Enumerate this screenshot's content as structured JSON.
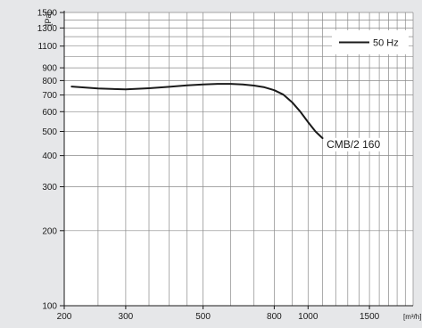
{
  "chart_data": {
    "type": "line",
    "title": "",
    "xlabel": "[m³/h]",
    "ylabel": "[Pa]",
    "x_scale": "log",
    "y_scale": "log",
    "xlim": [
      200,
      2000
    ],
    "ylim": [
      100,
      1500
    ],
    "x_ticks": [
      200,
      300,
      500,
      800,
      1000,
      1500
    ],
    "y_ticks": [
      100,
      200,
      300,
      400,
      500,
      600,
      700,
      800,
      900,
      1100,
      1300,
      1500
    ],
    "x_grid": [
      200,
      250,
      300,
      350,
      400,
      450,
      500,
      600,
      700,
      800,
      900,
      1000,
      1100,
      1200,
      1300,
      1400,
      1500,
      1600,
      1700,
      1800,
      1900,
      2000
    ],
    "y_grid": [
      100,
      200,
      300,
      400,
      500,
      600,
      700,
      800,
      900,
      1000,
      1100,
      1200,
      1300,
      1400,
      1500
    ],
    "grid": true,
    "legend": {
      "position": "top-right",
      "entries": [
        "50 Hz"
      ]
    },
    "series": [
      {
        "name": "50 Hz",
        "color": "#1a1a1a",
        "x": [
          210,
          250,
          300,
          350,
          400,
          450,
          500,
          550,
          600,
          650,
          700,
          750,
          800,
          850,
          900,
          950,
          1000,
          1050,
          1100
        ],
        "y": [
          757,
          743,
          737,
          745,
          755,
          765,
          772,
          776,
          776,
          772,
          764,
          752,
          732,
          702,
          655,
          600,
          545,
          500,
          470
        ]
      }
    ],
    "annotations": [
      {
        "text": "CMB/2 160",
        "x": 1130,
        "y": 430
      }
    ]
  }
}
